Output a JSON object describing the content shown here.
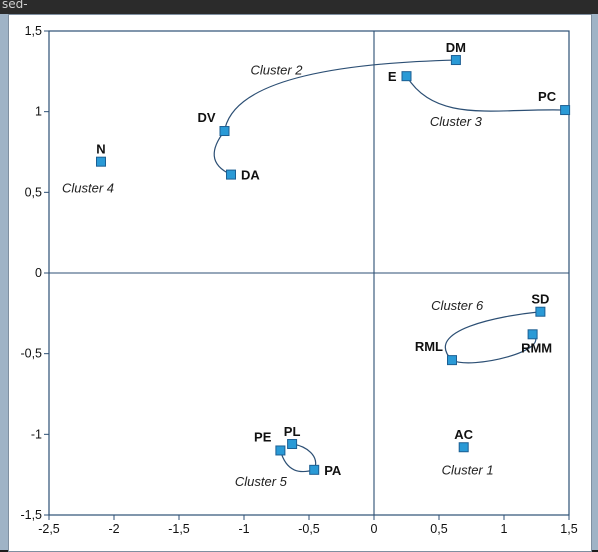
{
  "window": {
    "top_text": "sed-"
  },
  "chart_data": {
    "type": "scatter",
    "title": "",
    "xlabel": "",
    "ylabel": "",
    "xlim": [
      -2.5,
      1.5
    ],
    "ylim": [
      -1.5,
      1.5
    ],
    "x_ticks": [
      "-2,5",
      "-2",
      "-1,5",
      "-1",
      "-0,5",
      "0",
      "0,5",
      "1",
      "1,5"
    ],
    "y_ticks": [
      "1,5",
      "1",
      "0,5",
      "0",
      "-0,5",
      "-1",
      "-1,5"
    ],
    "grid": false,
    "marker_color": "#2a9ad6",
    "points": [
      {
        "label": "DM",
        "x": 0.63,
        "y": 1.32,
        "lpos": "above"
      },
      {
        "label": "E",
        "x": 0.25,
        "y": 1.22,
        "lpos": "left"
      },
      {
        "label": "PC",
        "x": 1.47,
        "y": 1.01,
        "lpos": "above-left"
      },
      {
        "label": "DV",
        "x": -1.15,
        "y": 0.88,
        "lpos": "above-left"
      },
      {
        "label": "DA",
        "x": -1.1,
        "y": 0.61,
        "lpos": "right"
      },
      {
        "label": "N",
        "x": -2.1,
        "y": 0.69,
        "lpos": "above"
      },
      {
        "label": "SD",
        "x": 1.28,
        "y": -0.24,
        "lpos": "above"
      },
      {
        "label": "RMM",
        "x": 1.22,
        "y": -0.38,
        "lpos": "below-right"
      },
      {
        "label": "RML",
        "x": 0.6,
        "y": -0.54,
        "lpos": "above-left"
      },
      {
        "label": "AC",
        "x": 0.69,
        "y": -1.08,
        "lpos": "above"
      },
      {
        "label": "PE",
        "x": -0.72,
        "y": -1.1,
        "lpos": "above-left"
      },
      {
        "label": "PL",
        "x": -0.63,
        "y": -1.06,
        "lpos": "above"
      },
      {
        "label": "PA",
        "x": -0.46,
        "y": -1.22,
        "lpos": "right"
      }
    ],
    "clusters": [
      {
        "name": "Cluster 1",
        "members": [
          "AC"
        ],
        "label_at": [
          0.72,
          -1.25
        ]
      },
      {
        "name": "Cluster 2",
        "members": [
          "DV",
          "DA",
          "DM"
        ],
        "label_at": [
          -0.75,
          1.23
        ]
      },
      {
        "name": "Cluster 3",
        "members": [
          "E",
          "PC"
        ],
        "label_at": [
          0.63,
          0.91
        ]
      },
      {
        "name": "Cluster 4",
        "members": [
          "N"
        ],
        "label_at": [
          -2.2,
          0.5
        ]
      },
      {
        "name": "Cluster 5",
        "members": [
          "PE",
          "PL",
          "PA"
        ],
        "label_at": [
          -0.87,
          -1.32
        ]
      },
      {
        "name": "Cluster 6",
        "members": [
          "SD",
          "RML",
          "RMM"
        ],
        "label_at": [
          0.64,
          -0.23
        ]
      }
    ]
  }
}
